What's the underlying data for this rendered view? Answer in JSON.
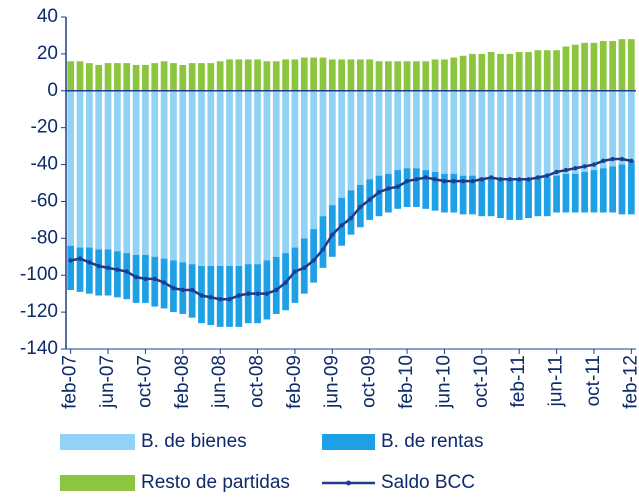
{
  "chart_data": {
    "type": "bar",
    "categories": [
      "feb-07",
      null,
      null,
      null,
      "jun-07",
      null,
      null,
      null,
      "oct-07",
      null,
      null,
      null,
      "feb-08",
      null,
      null,
      null,
      "jun-08",
      null,
      null,
      null,
      "oct-08",
      null,
      null,
      null,
      "feb-09",
      null,
      null,
      null,
      "jun-09",
      null,
      null,
      null,
      "oct-09",
      null,
      null,
      null,
      "feb-10",
      null,
      null,
      null,
      "jun-10",
      null,
      null,
      null,
      "oct-10",
      null,
      null,
      null,
      "feb-11",
      null,
      null,
      null,
      "jun-11",
      null,
      null,
      null,
      "oct-11",
      null,
      null,
      null,
      "feb-12"
    ],
    "series": [
      {
        "name": "B. de bienes",
        "color": "#92d3f5",
        "type": "bar",
        "values": [
          -84,
          -85,
          -85,
          -86,
          -86,
          -87,
          -88,
          -89,
          -89,
          -90,
          -91,
          -92,
          -93,
          -94,
          -95,
          -95,
          -95,
          -95,
          -95,
          -94,
          -94,
          -92,
          -90,
          -88,
          -85,
          -80,
          -75,
          -68,
          -62,
          -58,
          -54,
          -51,
          -48,
          -46,
          -45,
          -43,
          -42,
          -42,
          -43,
          -44,
          -45,
          -45,
          -46,
          -46,
          -47,
          -47,
          -47,
          -48,
          -48,
          -48,
          -47,
          -47,
          -46,
          -45,
          -45,
          -44,
          -43,
          -42,
          -41,
          -40,
          -38
        ]
      },
      {
        "name": "B. de rentas",
        "color": "#1ea0e6",
        "type": "bar",
        "values": [
          -24,
          -24,
          -25,
          -25,
          -25,
          -25,
          -25,
          -26,
          -26,
          -27,
          -27,
          -28,
          -28,
          -29,
          -31,
          -32,
          -33,
          -33,
          -33,
          -32,
          -32,
          -32,
          -31,
          -31,
          -30,
          -30,
          -29,
          -28,
          -28,
          -26,
          -24,
          -23,
          -22,
          -22,
          -21,
          -21,
          -21,
          -21,
          -21,
          -21,
          -21,
          -21,
          -21,
          -21,
          -21,
          -21,
          -22,
          -22,
          -22,
          -21,
          -21,
          -21,
          -20,
          -21,
          -21,
          -22,
          -23,
          -24,
          -25,
          -27,
          -29
        ]
      },
      {
        "name": "Resto de partidas",
        "color": "#8cc63f",
        "type": "bar",
        "values": [
          16,
          16,
          15,
          14,
          15,
          15,
          15,
          14,
          14,
          15,
          16,
          15,
          14,
          15,
          15,
          15,
          16,
          17,
          17,
          17,
          17,
          16,
          16,
          17,
          17,
          18,
          18,
          18,
          17,
          17,
          17,
          17,
          17,
          16,
          16,
          16,
          16,
          16,
          16,
          17,
          17,
          18,
          19,
          20,
          20,
          21,
          20,
          20,
          21,
          21,
          22,
          22,
          22,
          24,
          25,
          26,
          26,
          27,
          27,
          28,
          28
        ]
      },
      {
        "name": "Saldo BCC",
        "color": "#1f3d8c",
        "type": "line",
        "values": [
          -92,
          -91,
          -93,
          -95,
          -96,
          -97,
          -98,
          -101,
          -102,
          -102,
          -104,
          -107,
          -108,
          -108,
          -111,
          -112,
          -113,
          -113,
          -111,
          -110,
          -110,
          -110,
          -108,
          -104,
          -98,
          -96,
          -92,
          -86,
          -78,
          -73,
          -69,
          -63,
          -59,
          -55,
          -53,
          -52,
          -49,
          -48,
          -47,
          -48,
          -49,
          -49,
          -49,
          -49,
          -48,
          -47,
          -48,
          -48,
          -48,
          -48,
          -47,
          -46,
          -44,
          -43,
          -42,
          -41,
          -40,
          -38,
          -37,
          -37,
          -38
        ]
      }
    ],
    "ylim": [
      -140,
      40
    ],
    "yticks": [
      -140,
      -120,
      -100,
      -80,
      -60,
      -40,
      -20,
      0,
      20,
      40
    ],
    "grid": false
  }
}
